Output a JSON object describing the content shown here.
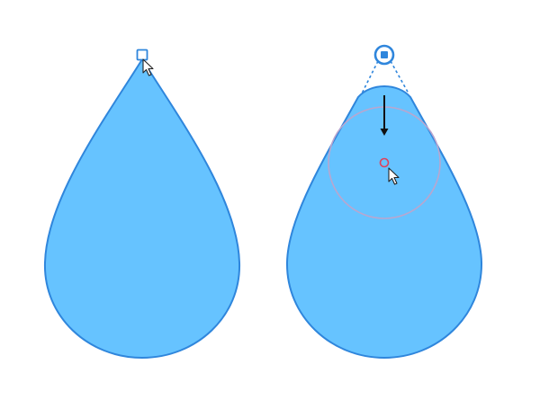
{
  "colors": {
    "background": "#ffffff",
    "shape_fill": "#66c3ff",
    "shape_stroke": "#2f86dc",
    "handle_stroke": "#2f86dc",
    "handle_fill": "#2f86dc",
    "guide_line": "#2f86dc",
    "radius_circle": "#b9a6cf",
    "center_marker": "#e0415a",
    "arrow": "#111111",
    "cursor_fill": "#ffffff",
    "cursor_stroke": "#222222"
  },
  "icons": {
    "corner_handle": "square-handle-icon",
    "selected_handle": "selected-handle-icon",
    "pointer": "mouse-pointer-icon",
    "drag_direction": "arrow-down-icon",
    "center": "center-point-icon"
  },
  "panels": [
    {
      "name": "sharp-corner",
      "state": "sharp tip, corner handle unselected"
    },
    {
      "name": "rounded-corner",
      "state": "handle dragged down, tip rounded"
    }
  ]
}
